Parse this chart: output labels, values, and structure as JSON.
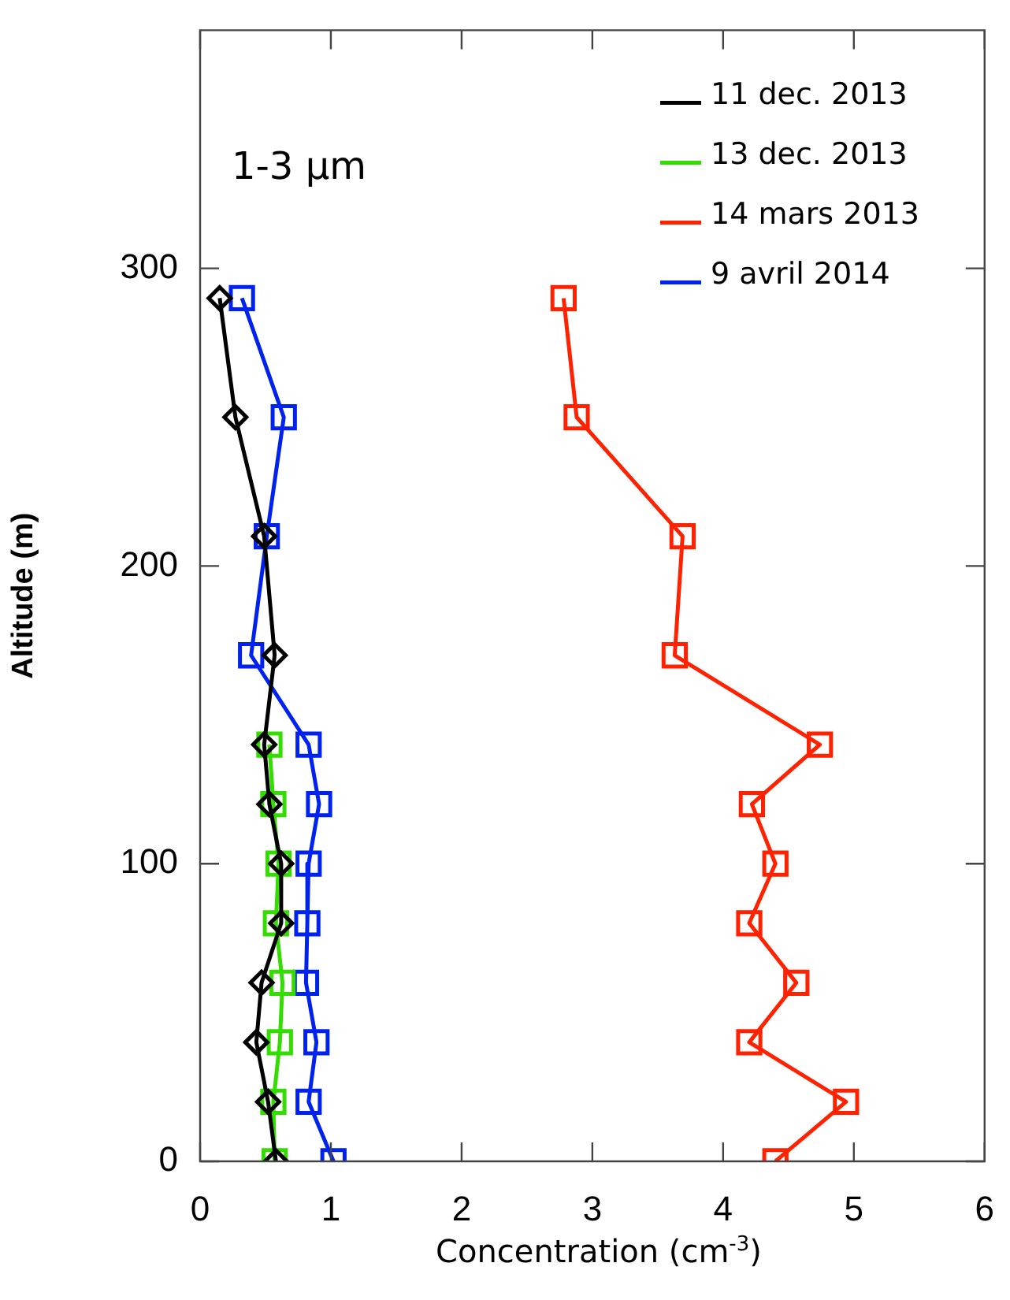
{
  "chart_data": {
    "type": "line",
    "xlabel": "Concentration (cm$^{-3}$)",
    "ylabel": "Altitude (m)",
    "annotations": [
      "1-3 μm"
    ],
    "xlim": [
      0,
      6
    ],
    "xticks": [
      0,
      1,
      2,
      3,
      4,
      5,
      6
    ],
    "ylim": [
      0,
      380
    ],
    "yticks": [
      0,
      100,
      200,
      300
    ],
    "grid": false,
    "legend": "top right",
    "line_style": "solid",
    "series": [
      {
        "name": "11 dec. 2013",
        "color": "#000000",
        "marker": "diamond",
        "x": [
          0.15,
          0.27,
          0.49,
          0.57,
          0.49,
          0.53,
          0.62,
          0.62,
          0.47,
          0.43,
          0.52,
          0.58
        ],
        "values": [
          290,
          250,
          210,
          170,
          140,
          120,
          100,
          80,
          60,
          40,
          20,
          0
        ]
      },
      {
        "name": "13 dec. 2013",
        "color": "#33dd00",
        "marker": "square",
        "x": [
          0.53,
          0.56,
          0.6,
          0.58,
          0.63,
          0.61,
          0.56,
          0.57
        ],
        "values": [
          140,
          120,
          100,
          80,
          60,
          40,
          20,
          0
        ]
      },
      {
        "name": "14 mars 2013",
        "color": "#ff2200",
        "marker": "square",
        "x": [
          2.78,
          2.88,
          3.69,
          3.63,
          4.74,
          4.22,
          4.4,
          4.2,
          4.56,
          4.2,
          4.94,
          4.4
        ],
        "values": [
          290,
          250,
          210,
          170,
          140,
          120,
          100,
          80,
          60,
          40,
          20,
          0
        ]
      },
      {
        "name": "9 avril 2014",
        "color": "#0022ee",
        "marker": "square",
        "x": [
          0.32,
          0.64,
          0.51,
          0.39,
          0.83,
          0.91,
          0.83,
          0.82,
          0.81,
          0.89,
          0.83,
          1.02
        ],
        "values": [
          290,
          250,
          210,
          170,
          140,
          120,
          100,
          80,
          60,
          40,
          20,
          0
        ]
      }
    ]
  }
}
